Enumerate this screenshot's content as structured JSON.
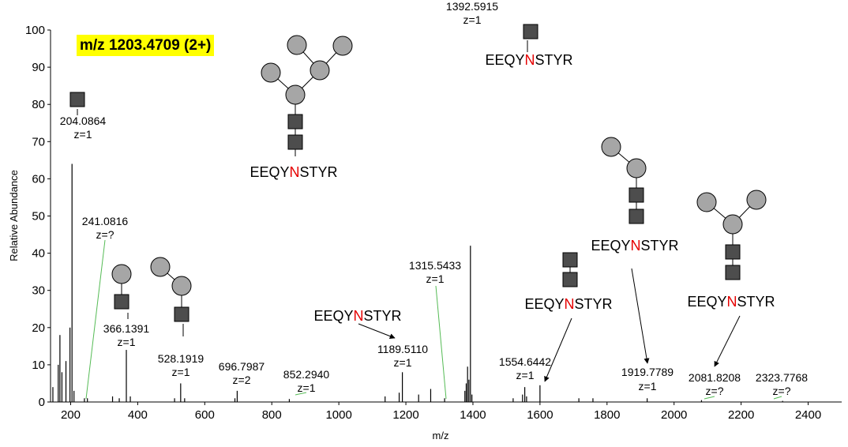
{
  "chart_data": {
    "type": "line",
    "title": "m/z 1203.4709 (2+)",
    "xlabel": "m/z",
    "ylabel": "Relative Abundance",
    "xlim": [
      140,
      2500
    ],
    "ylim": [
      0,
      100
    ],
    "x_ticks": [
      200,
      400,
      600,
      800,
      1000,
      1200,
      1400,
      1600,
      1800,
      2000,
      2200,
      2400
    ],
    "y_ticks": [
      0,
      10,
      20,
      30,
      40,
      50,
      60,
      70,
      80,
      90,
      100
    ],
    "colors": {
      "peak": "#000000",
      "glycan_square": "#4d4d4d",
      "glycan_circle": "#a6a6a6",
      "asparagine": "#e60000",
      "highlight": "#ffff00",
      "guide": "#55bb55"
    },
    "labeled_peaks": [
      {
        "mz_label": "204.0864",
        "charge": "z=1",
        "mz": 204.09,
        "intensity": 64
      },
      {
        "mz_label": "241.0816",
        "charge": "z=?",
        "mz": 241.08,
        "intensity": 1
      },
      {
        "mz_label": "366.1391",
        "charge": "z=1",
        "mz": 366.14,
        "intensity": 14
      },
      {
        "mz_label": "528.1919",
        "charge": "z=1",
        "mz": 528.19,
        "intensity": 5
      },
      {
        "mz_label": "696.7987",
        "charge": "z=2",
        "mz": 696.8,
        "intensity": 3
      },
      {
        "mz_label": "852.2940",
        "charge": "z=1",
        "mz": 852.29,
        "intensity": 0.8
      },
      {
        "mz_label": "1189.5110",
        "charge": "z=1",
        "mz": 1189.51,
        "intensity": 8
      },
      {
        "mz_label": "1315.5433",
        "charge": "z=1",
        "mz": 1315.54,
        "intensity": 1
      },
      {
        "mz_label": "1392.5915",
        "charge": "z=1",
        "mz": 1392.59,
        "intensity": 42
      },
      {
        "mz_label": "1554.6442",
        "charge": "z=1",
        "mz": 1554.64,
        "intensity": 4
      },
      {
        "mz_label": "1919.7789",
        "charge": "z=1",
        "mz": 1919.78,
        "intensity": 1
      },
      {
        "mz_label": "2081.8208",
        "charge": "z=?",
        "mz": 2081.82,
        "intensity": 0.5
      },
      {
        "mz_label": "2323.7768",
        "charge": "z=?",
        "mz": 2323.78,
        "intensity": 0.3
      }
    ],
    "minor_peaks": [
      {
        "mz": 147,
        "intensity": 4
      },
      {
        "mz": 163,
        "intensity": 10
      },
      {
        "mz": 168,
        "intensity": 18
      },
      {
        "mz": 174,
        "intensity": 8
      },
      {
        "mz": 186,
        "intensity": 11
      },
      {
        "mz": 198,
        "intensity": 20
      },
      {
        "mz": 210,
        "intensity": 3
      },
      {
        "mz": 250,
        "intensity": 1
      },
      {
        "mz": 325,
        "intensity": 1.5
      },
      {
        "mz": 345,
        "intensity": 1
      },
      {
        "mz": 378,
        "intensity": 1.5
      },
      {
        "mz": 510,
        "intensity": 1
      },
      {
        "mz": 540,
        "intensity": 1
      },
      {
        "mz": 690,
        "intensity": 1
      },
      {
        "mz": 1138,
        "intensity": 1.5
      },
      {
        "mz": 1180,
        "intensity": 2.5
      },
      {
        "mz": 1238,
        "intensity": 2
      },
      {
        "mz": 1274,
        "intensity": 3.5
      },
      {
        "mz": 1376,
        "intensity": 3
      },
      {
        "mz": 1380,
        "intensity": 5
      },
      {
        "mz": 1384,
        "intensity": 9.5
      },
      {
        "mz": 1388,
        "intensity": 6
      },
      {
        "mz": 1397,
        "intensity": 2
      },
      {
        "mz": 1520,
        "intensity": 1
      },
      {
        "mz": 1548,
        "intensity": 2
      },
      {
        "mz": 1560,
        "intensity": 1.5
      },
      {
        "mz": 1600,
        "intensity": 4.5
      },
      {
        "mz": 1716,
        "intensity": 1
      },
      {
        "mz": 1758,
        "intensity": 1
      }
    ],
    "annotations": {
      "peptide_prefix": "EEQY",
      "peptide_site": "N",
      "peptide_suffix": "STYR"
    }
  }
}
